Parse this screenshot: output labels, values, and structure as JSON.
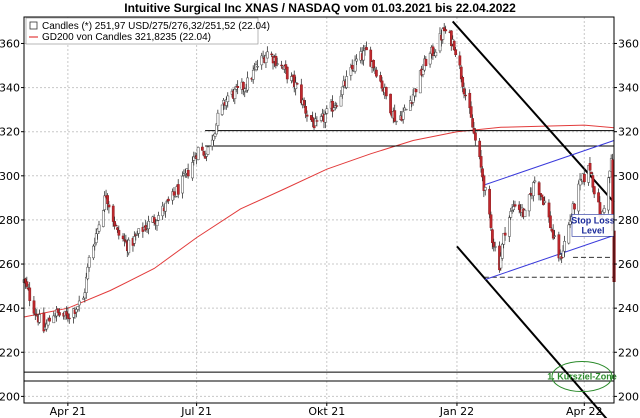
{
  "chart_data": {
    "type": "candlestick",
    "title": "Intuitive Surgical Inc XNAS / NASDAQ vom 01.03.2021 bis 22.04.2022",
    "legend_placement": "top-left",
    "grid": true,
    "ylim": [
      197,
      372
    ],
    "y_ticks": [
      "200",
      "220",
      "240",
      "260",
      "280",
      "300",
      "320",
      "340",
      "360"
    ],
    "y_tick_values": [
      200,
      220,
      240,
      260,
      280,
      300,
      320,
      340,
      360
    ],
    "x_ticks": [
      "Apr 21",
      "Jul 21",
      "Okt 21",
      "Jan 22",
      "Apr 22"
    ],
    "x_tick_values": [
      "2021-04-01",
      "2021-07-01",
      "2021-10-01",
      "2022-01-01",
      "2022-04-01"
    ],
    "x_range": [
      "2021-03-01",
      "2022-04-22"
    ],
    "legend": [
      {
        "label": "Candles (*) 251,97 USD/275/276,32/251,52 (22.04)",
        "color": "#ffffff",
        "border": "#333333"
      },
      {
        "label": "GD200 von Candles 321,8235 (22.04)",
        "color": "#e23b3b"
      }
    ],
    "colors": {
      "up": "#ffffff",
      "down": "#c0282d",
      "gd200": "#e23b3b",
      "trend": "#000000",
      "channel": "#3a3adb",
      "zone": "#3aa83a"
    },
    "price_anchors": [
      [
        "2021-03-01",
        252
      ],
      [
        "2021-03-08",
        240
      ],
      [
        "2021-03-15",
        230
      ],
      [
        "2021-03-22",
        238
      ],
      [
        "2021-03-31",
        236
      ],
      [
        "2021-04-12",
        244
      ],
      [
        "2021-04-16",
        262
      ],
      [
        "2021-04-22",
        276
      ],
      [
        "2021-04-28",
        292
      ],
      [
        "2021-05-06",
        274
      ],
      [
        "2021-05-14",
        268
      ],
      [
        "2021-05-24",
        276
      ],
      [
        "2021-06-04",
        282
      ],
      [
        "2021-06-14",
        290
      ],
      [
        "2021-06-22",
        298
      ],
      [
        "2021-07-02",
        312
      ],
      [
        "2021-07-08",
        310
      ],
      [
        "2021-07-16",
        326
      ],
      [
        "2021-07-23",
        336
      ],
      [
        "2021-07-30",
        338
      ],
      [
        "2021-08-06",
        342
      ],
      [
        "2021-08-13",
        350
      ],
      [
        "2021-08-20",
        356
      ],
      [
        "2021-08-27",
        352
      ],
      [
        "2021-09-03",
        346
      ],
      [
        "2021-09-10",
        340
      ],
      [
        "2021-09-17",
        328
      ],
      [
        "2021-09-24",
        322
      ],
      [
        "2021-10-01",
        328
      ],
      [
        "2021-10-08",
        334
      ],
      [
        "2021-10-15",
        343
      ],
      [
        "2021-10-22",
        352
      ],
      [
        "2021-10-29",
        356
      ],
      [
        "2021-11-05",
        348
      ],
      [
        "2021-11-12",
        336
      ],
      [
        "2021-11-19",
        325
      ],
      [
        "2021-11-26",
        330
      ],
      [
        "2021-12-03",
        340
      ],
      [
        "2021-12-10",
        352
      ],
      [
        "2021-12-17",
        358
      ],
      [
        "2021-12-23",
        366
      ],
      [
        "2021-12-30",
        360
      ],
      [
        "2022-01-05",
        343
      ],
      [
        "2022-01-12",
        322
      ],
      [
        "2022-01-19",
        300
      ],
      [
        "2022-01-26",
        272
      ],
      [
        "2022-01-31",
        260
      ],
      [
        "2022-02-04",
        276
      ],
      [
        "2022-02-11",
        288
      ],
      [
        "2022-02-18",
        282
      ],
      [
        "2022-02-25",
        298
      ],
      [
        "2022-03-04",
        288
      ],
      [
        "2022-03-11",
        270
      ],
      [
        "2022-03-15",
        262
      ],
      [
        "2022-03-22",
        280
      ],
      [
        "2022-03-29",
        296
      ],
      [
        "2022-04-05",
        304
      ],
      [
        "2022-04-08",
        294
      ],
      [
        "2022-04-13",
        280
      ],
      [
        "2022-04-18",
        298
      ],
      [
        "2022-04-20",
        306
      ],
      [
        "2022-04-21",
        275
      ],
      [
        "2022-04-22",
        252
      ]
    ],
    "last_candle": {
      "date": "2022-04-22",
      "open": 275,
      "high": 276.32,
      "low": 251.52,
      "close": 251.97
    },
    "gd200_anchors": [
      [
        "2021-03-01",
        236
      ],
      [
        "2021-04-01",
        240
      ],
      [
        "2021-05-01",
        248
      ],
      [
        "2021-06-01",
        258
      ],
      [
        "2021-07-01",
        272
      ],
      [
        "2021-08-01",
        285
      ],
      [
        "2021-09-01",
        294
      ],
      [
        "2021-10-01",
        303
      ],
      [
        "2021-11-01",
        310
      ],
      [
        "2021-12-01",
        316
      ],
      [
        "2022-01-01",
        320
      ],
      [
        "2022-02-01",
        322
      ],
      [
        "2022-03-01",
        322.5
      ],
      [
        "2022-04-01",
        323
      ],
      [
        "2022-04-22",
        321.8
      ]
    ],
    "trend_lines": [
      {
        "name": "downtrend-upper",
        "kind": "trend",
        "from": [
          "2021-12-29",
          370
        ],
        "to": [
          "2022-04-22",
          288
        ]
      },
      {
        "name": "downtrend-lower",
        "kind": "trend",
        "from": [
          "2022-01-01",
          268
        ],
        "to": [
          "2022-04-22",
          186
        ]
      },
      {
        "name": "channel-upper",
        "kind": "channel",
        "from": [
          "2022-01-21",
          296
        ],
        "to": [
          "2022-04-22",
          316
        ]
      },
      {
        "name": "channel-lower",
        "kind": "channel",
        "from": [
          "2022-01-21",
          253
        ],
        "to": [
          "2022-04-22",
          273
        ]
      }
    ],
    "horizontal_lines": [
      {
        "name": "resistance-320",
        "value": 320.5,
        "from": "2021-07-07",
        "to": "2022-04-22",
        "style": "solid",
        "color": "#000000"
      },
      {
        "name": "resistance-314",
        "value": 313.5,
        "from": "2021-07-07",
        "to": "2022-04-22",
        "style": "solid",
        "color": "#000000"
      },
      {
        "name": "level-263",
        "value": 263,
        "from": "2022-03-24",
        "to": "2022-04-22",
        "style": "dashed",
        "color": "#333333"
      },
      {
        "name": "level-254",
        "value": 254,
        "from": "2022-01-20",
        "to": "2022-04-22",
        "style": "dashed",
        "color": "#333333"
      },
      {
        "name": "support-211",
        "value": 211,
        "from": "2021-03-01",
        "to": "2022-04-22",
        "style": "solid",
        "color": "#000000"
      },
      {
        "name": "support-207",
        "value": 207,
        "from": "2021-03-01",
        "to": "2022-04-22",
        "style": "solid",
        "color": "#000000"
      }
    ],
    "annotations": [
      {
        "name": "stop-loss-label",
        "lines": [
          "Stop Loss",
          "Level"
        ],
        "date": "2022-04-14",
        "value": 278,
        "color": "#1a2a9a"
      },
      {
        "name": "kursziel-label",
        "text": "1. Kursziel-Zone",
        "date": "2022-04-05",
        "value": 209,
        "color": "#2a8a2a"
      }
    ]
  }
}
